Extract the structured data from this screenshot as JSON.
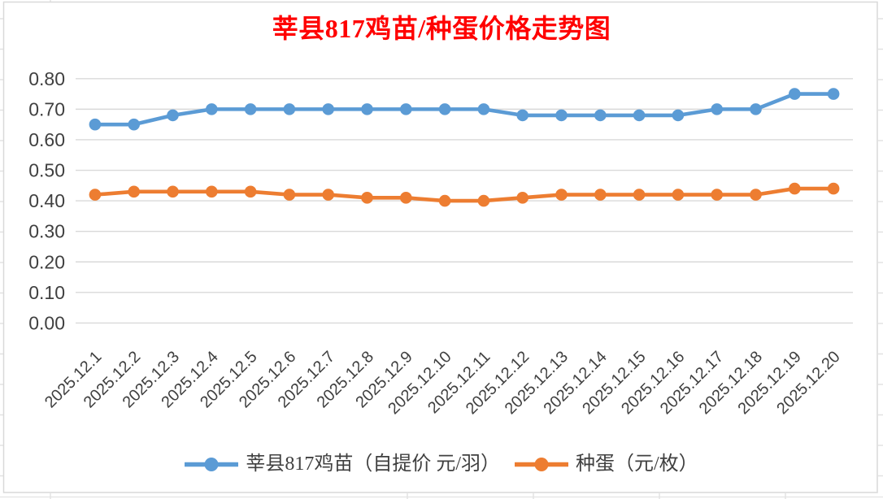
{
  "chart": {
    "title_color": "#FF0000",
    "axis_text_color": "#404040",
    "gridline_color": "#D9D9D9",
    "frame_color": "#D9D9D9",
    "background": "#FFFFFF"
  },
  "chart_data": {
    "type": "line",
    "title": "莘县817鸡苗/种蛋价格走势图",
    "categories": [
      "2025.12.1",
      "2025.12.2",
      "2025.12.3",
      "2025.12.4",
      "2025.12.5",
      "2025.12.6",
      "2025.12.7",
      "2025.12.8",
      "2025.12.9",
      "2025.12.10",
      "2025.12.11",
      "2025.12.12",
      "2025.12.13",
      "2025.12.14",
      "2025.12.15",
      "2025.12.16",
      "2025.12.17",
      "2025.12.18",
      "2025.12.19",
      "2025.12.20"
    ],
    "series": [
      {
        "name": "莘县817鸡苗（自提价 元/羽）",
        "color": "#5B9BD5",
        "values": [
          0.65,
          0.65,
          0.68,
          0.7,
          0.7,
          0.7,
          0.7,
          0.7,
          0.7,
          0.7,
          0.7,
          0.68,
          0.68,
          0.68,
          0.68,
          0.68,
          0.7,
          0.7,
          0.75,
          0.75
        ]
      },
      {
        "name": "种蛋（元/枚）",
        "color": "#ED7D31",
        "values": [
          0.42,
          0.43,
          0.43,
          0.43,
          0.43,
          0.42,
          0.42,
          0.41,
          0.41,
          0.4,
          0.4,
          0.41,
          0.42,
          0.42,
          0.42,
          0.42,
          0.42,
          0.42,
          0.44,
          0.44
        ]
      }
    ],
    "xlabel": "",
    "ylabel": "",
    "ylim": [
      0,
      0.8
    ],
    "y_tick_labels": [
      "0.00",
      "0.10",
      "0.20",
      "0.30",
      "0.40",
      "0.50",
      "0.60",
      "0.70",
      "0.80"
    ],
    "grid": true,
    "legend_position": "bottom",
    "x_label_rotation": 45
  }
}
